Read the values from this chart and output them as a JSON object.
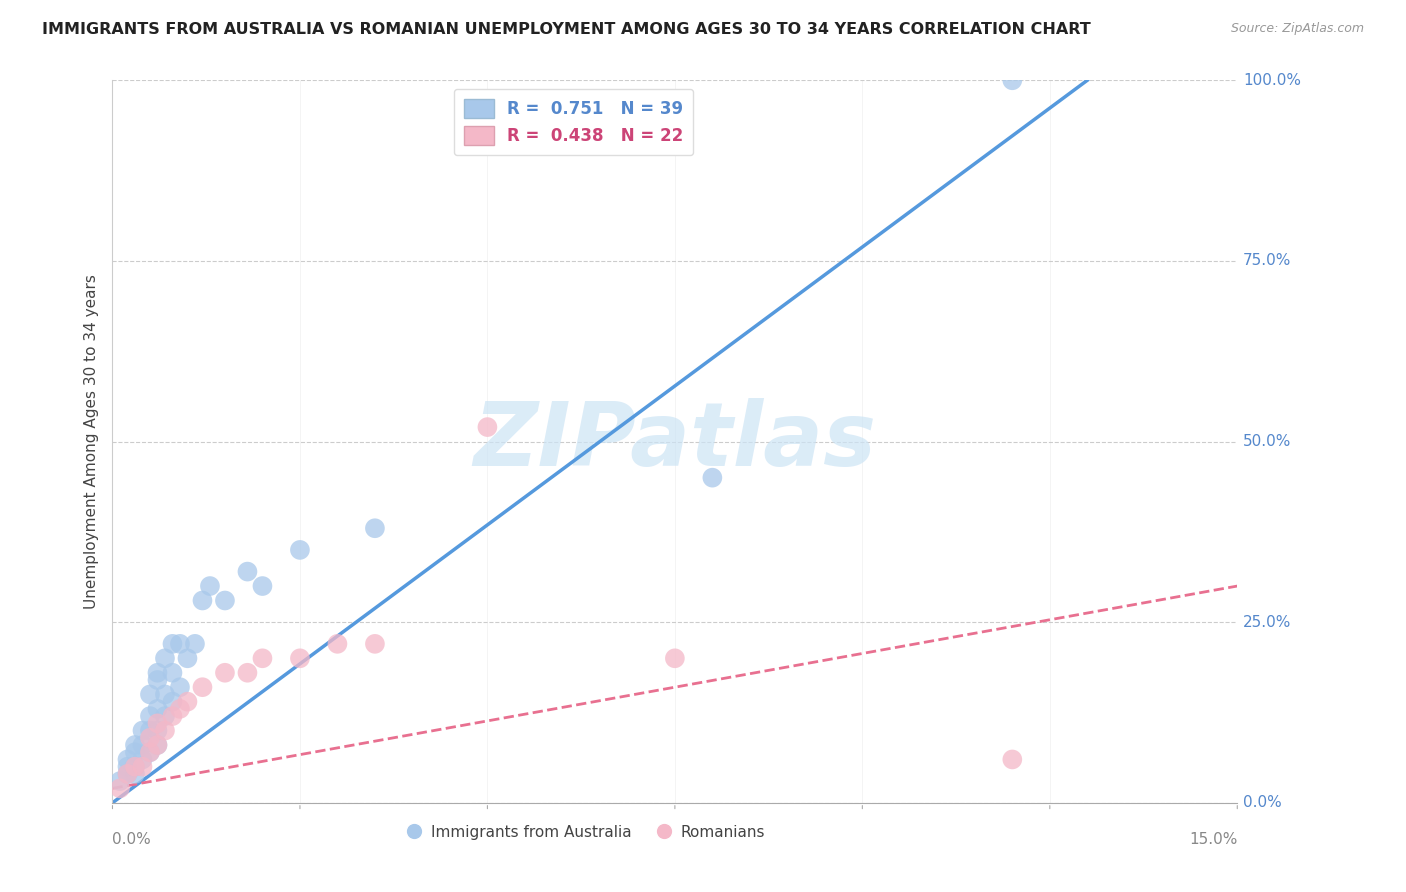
{
  "title": "IMMIGRANTS FROM AUSTRALIA VS ROMANIAN UNEMPLOYMENT AMONG AGES 30 TO 34 YEARS CORRELATION CHART",
  "source": "Source: ZipAtlas.com",
  "ylabel": "Unemployment Among Ages 30 to 34 years",
  "xlabel_blue": "Immigrants from Australia",
  "xlabel_pink": "Romanians",
  "xlim": [
    0.0,
    0.15
  ],
  "ylim": [
    0.0,
    1.0
  ],
  "yticks": [
    0.0,
    0.25,
    0.5,
    0.75,
    1.0
  ],
  "ytick_labels": [
    "0.0%",
    "25.0%",
    "50.0%",
    "75.0%",
    "100.0%"
  ],
  "xtick_left_label": "0.0%",
  "xtick_right_label": "15.0%",
  "xticks_minor": [
    0.0,
    0.025,
    0.05,
    0.075,
    0.1,
    0.125,
    0.15
  ],
  "legend_blue_R": "0.751",
  "legend_blue_N": "39",
  "legend_pink_R": "0.438",
  "legend_pink_N": "22",
  "blue_dot_color": "#a8c8ea",
  "pink_dot_color": "#f4b8c8",
  "line_blue_color": "#5599dd",
  "line_pink_color": "#e87090",
  "watermark_text": "ZIPatlas",
  "watermark_color": "#cce4f5",
  "blue_scatter_x": [
    0.001,
    0.002,
    0.002,
    0.002,
    0.003,
    0.003,
    0.003,
    0.003,
    0.004,
    0.004,
    0.004,
    0.005,
    0.005,
    0.005,
    0.005,
    0.006,
    0.006,
    0.006,
    0.006,
    0.006,
    0.007,
    0.007,
    0.007,
    0.008,
    0.008,
    0.008,
    0.009,
    0.009,
    0.01,
    0.011,
    0.012,
    0.013,
    0.015,
    0.018,
    0.02,
    0.025,
    0.035,
    0.08,
    0.12
  ],
  "blue_scatter_y": [
    0.03,
    0.04,
    0.05,
    0.06,
    0.04,
    0.05,
    0.07,
    0.08,
    0.06,
    0.08,
    0.1,
    0.07,
    0.1,
    0.12,
    0.15,
    0.08,
    0.1,
    0.13,
    0.17,
    0.18,
    0.12,
    0.15,
    0.2,
    0.14,
    0.18,
    0.22,
    0.16,
    0.22,
    0.2,
    0.22,
    0.28,
    0.3,
    0.28,
    0.32,
    0.3,
    0.35,
    0.38,
    0.45,
    1.0
  ],
  "pink_scatter_x": [
    0.001,
    0.002,
    0.003,
    0.004,
    0.005,
    0.005,
    0.006,
    0.006,
    0.007,
    0.008,
    0.009,
    0.01,
    0.012,
    0.015,
    0.018,
    0.02,
    0.025,
    0.03,
    0.035,
    0.05,
    0.075,
    0.12
  ],
  "pink_scatter_y": [
    0.02,
    0.04,
    0.05,
    0.05,
    0.07,
    0.09,
    0.08,
    0.11,
    0.1,
    0.12,
    0.13,
    0.14,
    0.16,
    0.18,
    0.18,
    0.2,
    0.2,
    0.22,
    0.22,
    0.52,
    0.2,
    0.06
  ],
  "blue_line_x": [
    0.0,
    0.13
  ],
  "blue_line_y": [
    0.0,
    1.0
  ],
  "pink_line_x": [
    0.0,
    0.15
  ],
  "pink_line_y": [
    0.02,
    0.3
  ],
  "background_color": "#ffffff",
  "grid_color": "#cccccc",
  "tick_color": "#7090b0",
  "ytick_color": "#5588cc"
}
